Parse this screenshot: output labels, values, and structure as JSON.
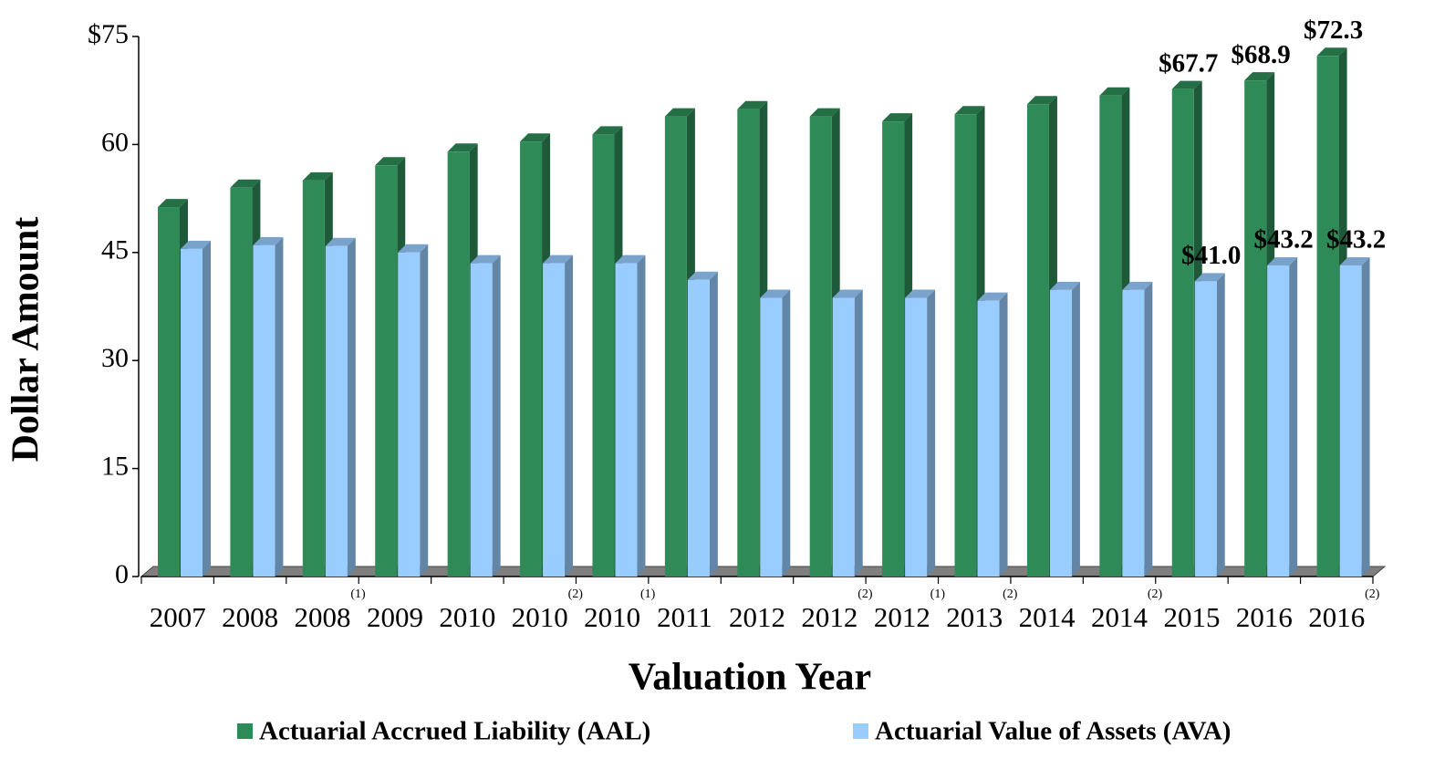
{
  "chart_data": {
    "type": "bar3d",
    "x_axis_label": "Valuation Year",
    "y_axis_label": "Dollar Amount",
    "categories": [
      "2007",
      "2008",
      "2008",
      "2009",
      "2010",
      "2010",
      "2010",
      "2011",
      "2012",
      "2012",
      "2012",
      "2013",
      "2014",
      "2014",
      "2015",
      "2016",
      "2016"
    ],
    "category_notes": [
      null,
      null,
      "(1)",
      null,
      null,
      "(2)",
      "(1)",
      null,
      null,
      "(2)",
      "(1)",
      "(2)",
      null,
      "(2)",
      null,
      null,
      "(2)"
    ],
    "series": [
      {
        "name": "Actuarial Accrued Liability (AAL)",
        "color": "#2e8b57",
        "values": [
          51.3,
          54.0,
          55.0,
          57.1,
          59.0,
          60.4,
          61.4,
          63.9,
          64.9,
          63.9,
          63.2,
          64.2,
          65.6,
          66.8,
          67.7,
          68.9,
          72.3
        ],
        "value_labels": [
          null,
          null,
          null,
          null,
          null,
          null,
          null,
          null,
          null,
          null,
          null,
          null,
          null,
          null,
          "$67.7",
          "$68.9",
          "$72.3"
        ]
      },
      {
        "name": "Actuarial Value of Assets (AVA)",
        "color": "#99ccff",
        "values": [
          45.5,
          46.0,
          45.9,
          45.0,
          43.5,
          43.5,
          43.5,
          41.2,
          38.7,
          38.7,
          38.7,
          38.3,
          39.8,
          39.8,
          41.0,
          43.2,
          43.2
        ],
        "value_labels": [
          null,
          null,
          null,
          null,
          null,
          null,
          null,
          null,
          null,
          null,
          null,
          null,
          null,
          null,
          "$41.0",
          "$43.2",
          "$43.2"
        ]
      }
    ],
    "ylim": [
      0,
      75
    ],
    "yticks": [
      0,
      15,
      30,
      45,
      60,
      {
        "value": 75,
        "label": "$75"
      }
    ]
  }
}
